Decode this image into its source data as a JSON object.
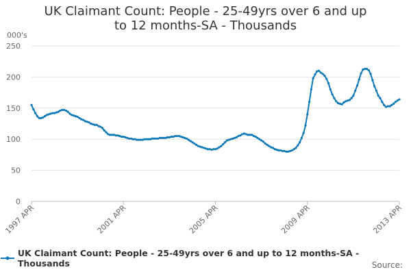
{
  "chart_data": {
    "type": "line",
    "title": "UK Claimant Count: People - 25-49yrs over 6 and up to 12 months-SA - Thousands",
    "y_label": "000's",
    "source": "Source:",
    "categories": [
      "1997 APR",
      null,
      null,
      null,
      null,
      null,
      null,
      null,
      null,
      null,
      null,
      null,
      null,
      null,
      null,
      null,
      null,
      null,
      null,
      null,
      null,
      null,
      null,
      null,
      null,
      null,
      null,
      null,
      null,
      null,
      null,
      null,
      null,
      null,
      null,
      null,
      null,
      null,
      null,
      null,
      null,
      null,
      null,
      null,
      null,
      null,
      null,
      null,
      "2001 APR",
      null,
      null,
      null,
      null,
      null,
      null,
      null,
      null,
      null,
      null,
      null,
      null,
      null,
      null,
      null,
      null,
      null,
      null,
      null,
      null,
      null,
      null,
      null,
      null,
      null,
      null,
      null,
      null,
      null,
      null,
      null,
      null,
      null,
      null,
      null,
      null,
      null,
      null,
      null,
      null,
      null,
      null,
      null,
      null,
      null,
      null,
      null,
      "2005 APR",
      null,
      null,
      null,
      null,
      null,
      null,
      null,
      null,
      null,
      null,
      null,
      null,
      null,
      null,
      null,
      null,
      null,
      null,
      null,
      null,
      null,
      null,
      null,
      null,
      null,
      null,
      null,
      null,
      null,
      null,
      null,
      null,
      null,
      null,
      null,
      null,
      null,
      null,
      null,
      null,
      null,
      null,
      null,
      null,
      null,
      null,
      null,
      "2009 APR",
      null,
      null,
      null,
      null,
      null,
      null,
      null,
      null,
      null,
      null,
      null,
      null,
      null,
      null,
      null,
      null,
      null,
      null,
      null,
      null,
      null,
      null,
      null,
      null,
      null,
      null,
      null,
      null,
      null,
      null,
      null,
      null,
      null,
      null,
      null,
      null,
      null,
      null,
      null,
      null,
      null,
      null,
      null,
      null,
      null,
      null,
      null,
      "2013 APR"
    ],
    "series": [
      {
        "name": "UK Claimant Count: People - 25-49yrs over 6 and up to 12 months-SA - Thousands",
        "color": "#0a77b8",
        "values": [
          155,
          148,
          142,
          137,
          134,
          134,
          135,
          137,
          139,
          140,
          141,
          142,
          142,
          143,
          144,
          146,
          147,
          147,
          146,
          144,
          141,
          139,
          138,
          137,
          136,
          134,
          132,
          131,
          129,
          128,
          127,
          125,
          124,
          123,
          123,
          121,
          120,
          118,
          114,
          111,
          108,
          107,
          107,
          107,
          106,
          106,
          105,
          104,
          104,
          103,
          102,
          101,
          101,
          100,
          100,
          99,
          99,
          99,
          99,
          100,
          100,
          100,
          100,
          101,
          101,
          101,
          101,
          102,
          102,
          102,
          102,
          103,
          103,
          104,
          104,
          105,
          105,
          105,
          104,
          103,
          102,
          101,
          99,
          97,
          95,
          93,
          91,
          89,
          88,
          87,
          86,
          85,
          84,
          84,
          83,
          84,
          84,
          85,
          87,
          89,
          92,
          95,
          98,
          99,
          100,
          101,
          102,
          103,
          105,
          106,
          108,
          109,
          108,
          107,
          107,
          107,
          105,
          104,
          102,
          100,
          98,
          96,
          93,
          91,
          89,
          87,
          86,
          84,
          83,
          82,
          82,
          81,
          81,
          80,
          80,
          81,
          82,
          84,
          86,
          90,
          95,
          102,
          110,
          122,
          140,
          160,
          180,
          198,
          204,
          209,
          210,
          207,
          205,
          202,
          197,
          190,
          180,
          172,
          166,
          161,
          158,
          157,
          156,
          159,
          161,
          162,
          163,
          166,
          170,
          178,
          186,
          196,
          206,
          212,
          213,
          213,
          211,
          205,
          195,
          185,
          178,
          170,
          166,
          160,
          155,
          152,
          153,
          153,
          155,
          157,
          160,
          162,
          164
        ]
      }
    ],
    "ylim": [
      0,
      250
    ],
    "yticks": [
      0,
      50,
      100,
      150,
      200,
      250
    ],
    "grid": true
  }
}
